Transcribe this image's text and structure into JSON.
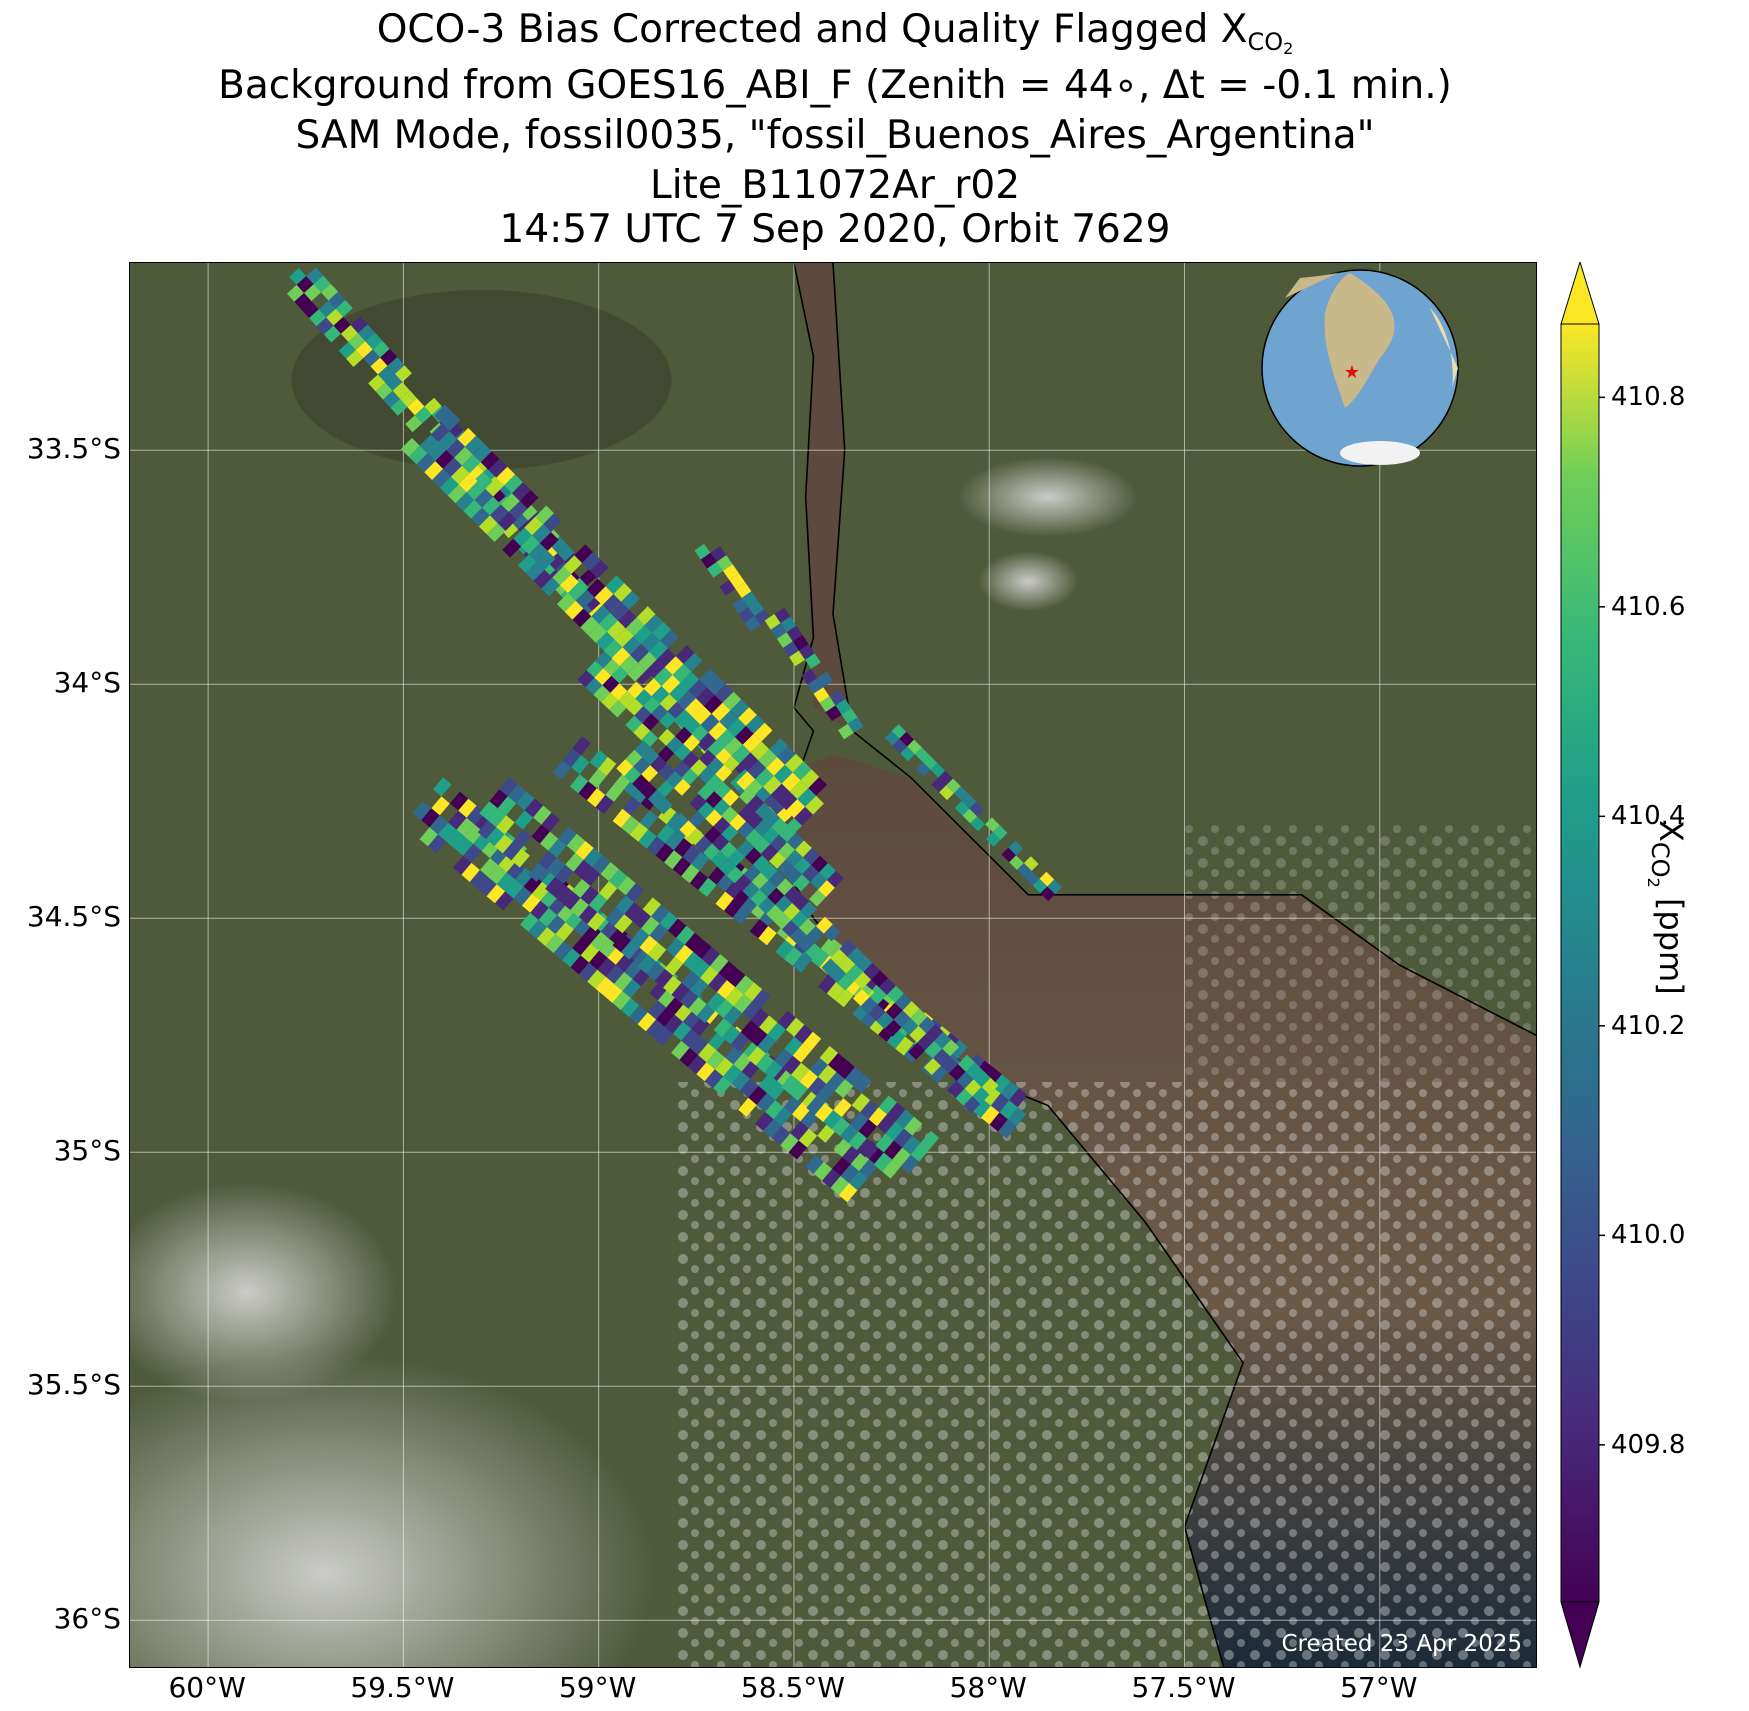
{
  "title": {
    "line1_main": "OCO-3 Bias Corrected and Quality Flagged X",
    "line1_sub": "CO",
    "line1_subsub": "2",
    "line2": "Background from GOES16_ABI_F (Zenith = 44∘, Δt = -0.1 min.)",
    "line3": "SAM Mode, fossil0035, \"fossil_Buenos_Aires_Argentina\"",
    "line4": "Lite_B11072Ar_r02",
    "line5": "14:57 UTC 7 Sep 2020, Orbit 7629"
  },
  "map": {
    "lon_range": [
      -60.2,
      -56.6
    ],
    "lat_range": [
      -36.1,
      -33.1
    ],
    "lat_ticks": [
      {
        "value": -33.5,
        "label": "33.5°S"
      },
      {
        "value": -34.0,
        "label": "34°S"
      },
      {
        "value": -34.5,
        "label": "34.5°S"
      },
      {
        "value": -35.0,
        "label": "35°S"
      },
      {
        "value": -35.5,
        "label": "35.5°S"
      },
      {
        "value": -36.0,
        "label": "36°S"
      }
    ],
    "lon_ticks": [
      {
        "value": -60.0,
        "label": "60°W"
      },
      {
        "value": -59.5,
        "label": "59.5°W"
      },
      {
        "value": -59.0,
        "label": "59°W"
      },
      {
        "value": -58.5,
        "label": "58.5°W"
      },
      {
        "value": -58.0,
        "label": "58°W"
      },
      {
        "value": -57.5,
        "label": "57.5°W"
      },
      {
        "value": -57.0,
        "label": "57°W"
      }
    ],
    "grid": true,
    "land_color": "#4f5a3a",
    "water_color": "#5b4a3d",
    "ocean_dark_color": "#1d2b3a",
    "cloud_color": "#c9c9c9",
    "target_marker": "red star on inset globe",
    "created_text": "Created 23 Apr 2025"
  },
  "colorbar": {
    "colormap": "viridis",
    "range": [
      409.65,
      410.87
    ],
    "ticks": [
      {
        "value": 409.8,
        "label": "409.8"
      },
      {
        "value": 410.0,
        "label": "410.0"
      },
      {
        "value": 410.2,
        "label": "410.2"
      },
      {
        "value": 410.4,
        "label": "410.4"
      },
      {
        "value": 410.6,
        "label": "410.6"
      },
      {
        "value": 410.8,
        "label": "410.8"
      }
    ],
    "label_main": "X",
    "label_sub": "CO",
    "label_subsub": "2",
    "label_unit": " [ppm]",
    "extend": "both"
  },
  "chart_data": {
    "type": "heatmap",
    "description_source": "OCO-3 XCO2 soundings in SAM mode; swaths approximated",
    "value_range_ppm": [
      409.65,
      410.87
    ],
    "swaths": [
      {
        "start": [
          -59.78,
          -33.12
        ],
        "end": [
          -58.52,
          -34.28
        ],
        "width_deg": 0.1
      },
      {
        "start": [
          -59.45,
          -33.45
        ],
        "end": [
          -58.45,
          -34.28
        ],
        "width_deg": 0.16
      },
      {
        "start": [
          -58.73,
          -33.7
        ],
        "end": [
          -58.58,
          -33.88
        ],
        "width_deg": 0.06
      },
      {
        "start": [
          -58.55,
          -33.85
        ],
        "end": [
          -58.35,
          -34.1
        ],
        "width_deg": 0.06
      },
      {
        "start": [
          -59.02,
          -33.96
        ],
        "end": [
          -58.4,
          -34.45
        ],
        "width_deg": 0.1
      },
      {
        "start": [
          -59.08,
          -34.15
        ],
        "end": [
          -57.92,
          -34.93
        ],
        "width_deg": 0.12
      },
      {
        "start": [
          -58.92,
          -34.15
        ],
        "end": [
          -58.02,
          -34.88
        ],
        "width_deg": 0.1
      },
      {
        "start": [
          -59.45,
          -34.25
        ],
        "end": [
          -58.32,
          -35.05
        ],
        "width_deg": 0.16
      },
      {
        "start": [
          -59.28,
          -34.25
        ],
        "end": [
          -58.18,
          -35.02
        ],
        "width_deg": 0.16
      },
      {
        "start": [
          -58.25,
          -34.1
        ],
        "end": [
          -57.83,
          -34.45
        ],
        "width_deg": 0.05
      }
    ]
  }
}
